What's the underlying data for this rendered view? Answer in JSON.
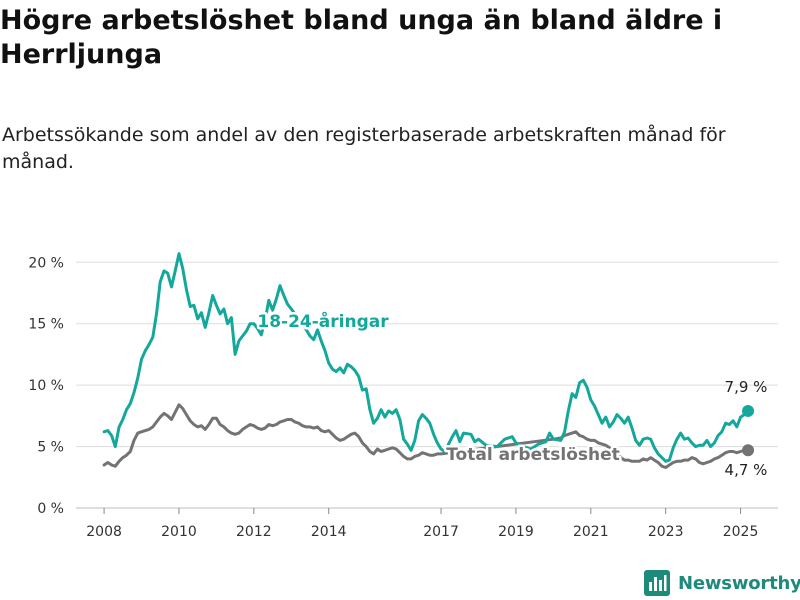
{
  "title": "Högre arbetslöshet bland unga än bland äldre i Herrljunga",
  "subtitle": "Arbetssökande som andel av den registerbaserade arbetskraften månad för månad.",
  "brand": "Newsworthy",
  "colors": {
    "youth": "#13a89b",
    "total": "#737373",
    "grid": "#dddddd",
    "brand": "#1e8a7a"
  },
  "chart_data": {
    "type": "line",
    "title": "Högre arbetslöshet bland unga än bland äldre i Herrljunga",
    "subtitle": "Arbetssökande som andel av den registerbaserade arbetskraften månad för månad.",
    "y_tick_labels": [
      "0 %",
      "5 %",
      "10 %",
      "15 %",
      "20 %"
    ],
    "y_ticks": [
      0,
      5,
      10,
      15,
      20
    ],
    "ylim": [
      0,
      21
    ],
    "x_tick_labels": [
      "2008",
      "2010",
      "2012",
      "2014",
      "2017",
      "2019",
      "2021",
      "2023",
      "2025"
    ],
    "x_ticks": [
      2008,
      2010,
      2012,
      2014,
      2017,
      2019,
      2021,
      2023,
      2025
    ],
    "xlim": [
      2007.25,
      2026
    ],
    "grid": "horizontal",
    "series": [
      {
        "name": "18-24-åringar",
        "color": "#13a89b",
        "end_label": "7,9 %",
        "points": [
          [
            2008.0,
            6.2
          ],
          [
            2008.1,
            6.3
          ],
          [
            2008.2,
            5.9
          ],
          [
            2008.3,
            5.0
          ],
          [
            2008.4,
            6.6
          ],
          [
            2008.5,
            7.2
          ],
          [
            2008.6,
            8.0
          ],
          [
            2008.7,
            8.5
          ],
          [
            2008.8,
            9.4
          ],
          [
            2008.9,
            10.6
          ],
          [
            2009.0,
            12.1
          ],
          [
            2009.1,
            12.8
          ],
          [
            2009.2,
            13.3
          ],
          [
            2009.3,
            13.9
          ],
          [
            2009.4,
            15.8
          ],
          [
            2009.5,
            18.4
          ],
          [
            2009.6,
            19.3
          ],
          [
            2009.7,
            19.1
          ],
          [
            2009.8,
            18.0
          ],
          [
            2009.9,
            19.3
          ],
          [
            2010.0,
            20.7
          ],
          [
            2010.1,
            19.5
          ],
          [
            2010.2,
            17.8
          ],
          [
            2010.3,
            16.4
          ],
          [
            2010.4,
            16.5
          ],
          [
            2010.5,
            15.4
          ],
          [
            2010.6,
            15.9
          ],
          [
            2010.7,
            14.7
          ],
          [
            2010.8,
            15.9
          ],
          [
            2010.9,
            17.3
          ],
          [
            2011.0,
            16.5
          ],
          [
            2011.1,
            15.8
          ],
          [
            2011.2,
            16.2
          ],
          [
            2011.3,
            15.0
          ],
          [
            2011.4,
            15.5
          ],
          [
            2011.5,
            12.5
          ],
          [
            2011.6,
            13.6
          ],
          [
            2011.7,
            14.0
          ],
          [
            2011.8,
            14.4
          ],
          [
            2011.9,
            15.0
          ],
          [
            2012.0,
            15.0
          ],
          [
            2012.1,
            14.6
          ],
          [
            2012.2,
            14.1
          ],
          [
            2012.3,
            15.3
          ],
          [
            2012.4,
            16.9
          ],
          [
            2012.5,
            16.1
          ],
          [
            2012.6,
            17.0
          ],
          [
            2012.7,
            18.1
          ],
          [
            2012.8,
            17.3
          ],
          [
            2012.9,
            16.6
          ],
          [
            2013.0,
            16.2
          ],
          [
            2013.1,
            15.8
          ],
          [
            2013.2,
            15.5
          ],
          [
            2013.3,
            15.1
          ],
          [
            2013.4,
            14.5
          ],
          [
            2013.5,
            14.0
          ],
          [
            2013.6,
            13.7
          ],
          [
            2013.7,
            14.5
          ],
          [
            2013.8,
            13.6
          ],
          [
            2013.9,
            12.8
          ],
          [
            2014.0,
            11.8
          ],
          [
            2014.1,
            11.3
          ],
          [
            2014.2,
            11.1
          ],
          [
            2014.3,
            11.4
          ],
          [
            2014.4,
            11.0
          ],
          [
            2014.5,
            11.7
          ],
          [
            2014.6,
            11.5
          ],
          [
            2014.7,
            11.2
          ],
          [
            2014.8,
            10.7
          ],
          [
            2014.9,
            9.6
          ],
          [
            2015.0,
            9.7
          ],
          [
            2015.1,
            8.0
          ],
          [
            2015.2,
            6.9
          ],
          [
            2015.3,
            7.3
          ],
          [
            2015.4,
            8.0
          ],
          [
            2015.5,
            7.4
          ],
          [
            2015.6,
            7.9
          ],
          [
            2015.7,
            7.7
          ],
          [
            2015.8,
            8.0
          ],
          [
            2015.9,
            7.2
          ],
          [
            2016.0,
            5.6
          ],
          [
            2016.1,
            5.2
          ],
          [
            2016.2,
            4.7
          ],
          [
            2016.3,
            5.5
          ],
          [
            2016.4,
            7.1
          ],
          [
            2016.5,
            7.6
          ],
          [
            2016.6,
            7.3
          ],
          [
            2016.7,
            6.9
          ],
          [
            2016.8,
            6.0
          ],
          [
            2016.9,
            5.3
          ],
          [
            2017.0,
            4.8
          ],
          [
            2017.1,
            4.6
          ],
          [
            2017.3,
            5.8
          ],
          [
            2017.4,
            6.3
          ],
          [
            2017.5,
            5.4
          ],
          [
            2017.6,
            6.1
          ],
          [
            2017.8,
            6.0
          ],
          [
            2017.9,
            5.4
          ],
          [
            2018.0,
            5.6
          ],
          [
            2018.2,
            5.1
          ],
          [
            2018.5,
            5.0
          ],
          [
            2018.7,
            5.6
          ],
          [
            2018.9,
            5.8
          ],
          [
            2019.0,
            5.3
          ],
          [
            2019.2,
            5.0
          ],
          [
            2019.4,
            4.8
          ],
          [
            2019.6,
            5.2
          ],
          [
            2019.8,
            5.4
          ],
          [
            2019.9,
            6.1
          ],
          [
            2020.0,
            5.6
          ],
          [
            2020.2,
            5.5
          ],
          [
            2020.3,
            6.2
          ],
          [
            2020.4,
            7.9
          ],
          [
            2020.5,
            9.3
          ],
          [
            2020.6,
            9.0
          ],
          [
            2020.7,
            10.2
          ],
          [
            2020.8,
            10.4
          ],
          [
            2020.9,
            9.8
          ],
          [
            2021.0,
            8.8
          ],
          [
            2021.1,
            8.3
          ],
          [
            2021.2,
            7.6
          ],
          [
            2021.3,
            6.9
          ],
          [
            2021.4,
            7.4
          ],
          [
            2021.5,
            6.6
          ],
          [
            2021.6,
            7.0
          ],
          [
            2021.7,
            7.6
          ],
          [
            2021.8,
            7.3
          ],
          [
            2021.9,
            6.9
          ],
          [
            2022.0,
            7.4
          ],
          [
            2022.1,
            6.5
          ],
          [
            2022.2,
            5.5
          ],
          [
            2022.3,
            5.1
          ],
          [
            2022.4,
            5.6
          ],
          [
            2022.5,
            5.7
          ],
          [
            2022.6,
            5.6
          ],
          [
            2022.7,
            4.9
          ],
          [
            2022.8,
            4.4
          ],
          [
            2022.9,
            4.1
          ],
          [
            2023.0,
            3.8
          ],
          [
            2023.1,
            3.9
          ],
          [
            2023.2,
            4.9
          ],
          [
            2023.3,
            5.6
          ],
          [
            2023.4,
            6.1
          ],
          [
            2023.5,
            5.6
          ],
          [
            2023.6,
            5.7
          ],
          [
            2023.7,
            5.3
          ],
          [
            2023.8,
            5.0
          ],
          [
            2023.9,
            5.1
          ],
          [
            2024.0,
            5.1
          ],
          [
            2024.1,
            5.5
          ],
          [
            2024.2,
            5.0
          ],
          [
            2024.3,
            5.3
          ],
          [
            2024.4,
            5.9
          ],
          [
            2024.5,
            6.2
          ],
          [
            2024.6,
            6.9
          ],
          [
            2024.7,
            6.8
          ],
          [
            2024.8,
            7.1
          ],
          [
            2024.9,
            6.6
          ],
          [
            2025.0,
            7.4
          ],
          [
            2025.1,
            7.6
          ],
          [
            2025.2,
            7.9
          ]
        ]
      },
      {
        "name": "Total arbetslöshet",
        "color": "#737373",
        "end_label": "4,7 %",
        "points": [
          [
            2008.0,
            3.5
          ],
          [
            2008.1,
            3.7
          ],
          [
            2008.2,
            3.5
          ],
          [
            2008.3,
            3.4
          ],
          [
            2008.4,
            3.8
          ],
          [
            2008.5,
            4.1
          ],
          [
            2008.6,
            4.3
          ],
          [
            2008.7,
            4.6
          ],
          [
            2008.8,
            5.5
          ],
          [
            2008.9,
            6.1
          ],
          [
            2009.0,
            6.2
          ],
          [
            2009.1,
            6.3
          ],
          [
            2009.2,
            6.4
          ],
          [
            2009.3,
            6.6
          ],
          [
            2009.4,
            7.0
          ],
          [
            2009.5,
            7.4
          ],
          [
            2009.6,
            7.7
          ],
          [
            2009.7,
            7.5
          ],
          [
            2009.8,
            7.2
          ],
          [
            2009.9,
            7.8
          ],
          [
            2010.0,
            8.4
          ],
          [
            2010.1,
            8.1
          ],
          [
            2010.2,
            7.6
          ],
          [
            2010.3,
            7.1
          ],
          [
            2010.4,
            6.8
          ],
          [
            2010.5,
            6.6
          ],
          [
            2010.6,
            6.7
          ],
          [
            2010.7,
            6.4
          ],
          [
            2010.8,
            6.8
          ],
          [
            2010.9,
            7.3
          ],
          [
            2011.0,
            7.3
          ],
          [
            2011.1,
            6.8
          ],
          [
            2011.2,
            6.6
          ],
          [
            2011.3,
            6.3
          ],
          [
            2011.4,
            6.1
          ],
          [
            2011.5,
            6.0
          ],
          [
            2011.6,
            6.1
          ],
          [
            2011.7,
            6.4
          ],
          [
            2011.8,
            6.6
          ],
          [
            2011.9,
            6.8
          ],
          [
            2012.0,
            6.7
          ],
          [
            2012.1,
            6.5
          ],
          [
            2012.2,
            6.4
          ],
          [
            2012.3,
            6.5
          ],
          [
            2012.4,
            6.8
          ],
          [
            2012.5,
            6.7
          ],
          [
            2012.6,
            6.8
          ],
          [
            2012.7,
            7.0
          ],
          [
            2012.8,
            7.1
          ],
          [
            2012.9,
            7.2
          ],
          [
            2013.0,
            7.2
          ],
          [
            2013.1,
            7.0
          ],
          [
            2013.2,
            6.9
          ],
          [
            2013.3,
            6.7
          ],
          [
            2013.4,
            6.6
          ],
          [
            2013.5,
            6.6
          ],
          [
            2013.6,
            6.5
          ],
          [
            2013.7,
            6.6
          ],
          [
            2013.8,
            6.3
          ],
          [
            2013.9,
            6.2
          ],
          [
            2014.0,
            6.3
          ],
          [
            2014.1,
            6.0
          ],
          [
            2014.2,
            5.7
          ],
          [
            2014.3,
            5.5
          ],
          [
            2014.4,
            5.6
          ],
          [
            2014.5,
            5.8
          ],
          [
            2014.6,
            6.0
          ],
          [
            2014.7,
            6.1
          ],
          [
            2014.8,
            5.8
          ],
          [
            2014.9,
            5.3
          ],
          [
            2015.0,
            5.0
          ],
          [
            2015.1,
            4.6
          ],
          [
            2015.2,
            4.4
          ],
          [
            2015.3,
            4.8
          ],
          [
            2015.4,
            4.6
          ],
          [
            2015.5,
            4.7
          ],
          [
            2015.6,
            4.8
          ],
          [
            2015.7,
            4.9
          ],
          [
            2015.8,
            4.8
          ],
          [
            2015.9,
            4.5
          ],
          [
            2016.0,
            4.2
          ],
          [
            2016.1,
            4.0
          ],
          [
            2016.2,
            4.0
          ],
          [
            2016.3,
            4.2
          ],
          [
            2016.4,
            4.3
          ],
          [
            2016.5,
            4.5
          ],
          [
            2016.6,
            4.4
          ],
          [
            2016.7,
            4.3
          ],
          [
            2016.8,
            4.3
          ],
          [
            2016.9,
            4.4
          ],
          [
            2017.0,
            4.4
          ],
          [
            2020.0,
            5.6
          ],
          [
            2020.2,
            5.7
          ],
          [
            2020.3,
            5.9
          ],
          [
            2020.4,
            6.0
          ],
          [
            2020.5,
            6.1
          ],
          [
            2020.6,
            6.2
          ],
          [
            2020.7,
            5.9
          ],
          [
            2020.8,
            5.8
          ],
          [
            2020.9,
            5.6
          ],
          [
            2021.0,
            5.5
          ],
          [
            2021.1,
            5.5
          ],
          [
            2021.2,
            5.3
          ],
          [
            2021.3,
            5.2
          ],
          [
            2021.4,
            5.1
          ],
          [
            2021.5,
            4.9
          ],
          [
            2021.6,
            4.7
          ],
          [
            2021.7,
            4.4
          ],
          [
            2021.8,
            4.1
          ],
          [
            2021.9,
            3.9
          ],
          [
            2022.0,
            3.9
          ],
          [
            2022.1,
            3.8
          ],
          [
            2022.2,
            3.8
          ],
          [
            2022.3,
            3.8
          ],
          [
            2022.4,
            4.0
          ],
          [
            2022.5,
            3.9
          ],
          [
            2022.6,
            4.1
          ],
          [
            2022.7,
            3.9
          ],
          [
            2022.8,
            3.7
          ],
          [
            2022.9,
            3.4
          ],
          [
            2023.0,
            3.3
          ],
          [
            2023.1,
            3.5
          ],
          [
            2023.2,
            3.7
          ],
          [
            2023.3,
            3.8
          ],
          [
            2023.4,
            3.8
          ],
          [
            2023.5,
            3.9
          ],
          [
            2023.6,
            3.9
          ],
          [
            2023.7,
            4.1
          ],
          [
            2023.8,
            4.0
          ],
          [
            2023.9,
            3.7
          ],
          [
            2024.0,
            3.6
          ],
          [
            2024.1,
            3.7
          ],
          [
            2024.2,
            3.8
          ],
          [
            2024.3,
            4.0
          ],
          [
            2024.4,
            4.1
          ],
          [
            2024.5,
            4.3
          ],
          [
            2024.6,
            4.5
          ],
          [
            2024.7,
            4.6
          ],
          [
            2024.8,
            4.6
          ],
          [
            2024.9,
            4.5
          ],
          [
            2025.0,
            4.6
          ],
          [
            2025.1,
            4.7
          ],
          [
            2025.2,
            4.7
          ]
        ]
      }
    ]
  }
}
